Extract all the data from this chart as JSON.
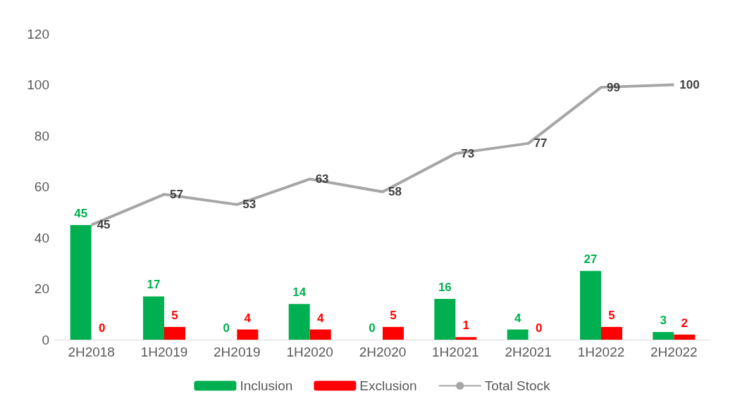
{
  "chart_data": {
    "type": "bar",
    "categories": [
      "2H2018",
      "1H2019",
      "2H2019",
      "1H2020",
      "2H2020",
      "1H2021",
      "2H2021",
      "1H2022",
      "2H2022"
    ],
    "series": [
      {
        "name": "Inclusion",
        "color": "#00b050",
        "values": [
          45,
          17,
          0,
          14,
          0,
          16,
          4,
          27,
          3
        ]
      },
      {
        "name": "Exclusion",
        "color": "#ff0000",
        "values": [
          0,
          5,
          4,
          4,
          5,
          1,
          0,
          5,
          2
        ]
      },
      {
        "name": "Total Stock",
        "type": "line",
        "color": "#a6a6a6",
        "values": [
          45,
          57,
          53,
          63,
          58,
          73,
          77,
          99,
          100
        ]
      }
    ],
    "ylim": [
      0,
      120
    ],
    "yticks": [
      0,
      20,
      40,
      60,
      80,
      100,
      120
    ],
    "grid": false,
    "legend": "bottom",
    "data_labels": true,
    "marker": "none",
    "line_style": "solid"
  }
}
